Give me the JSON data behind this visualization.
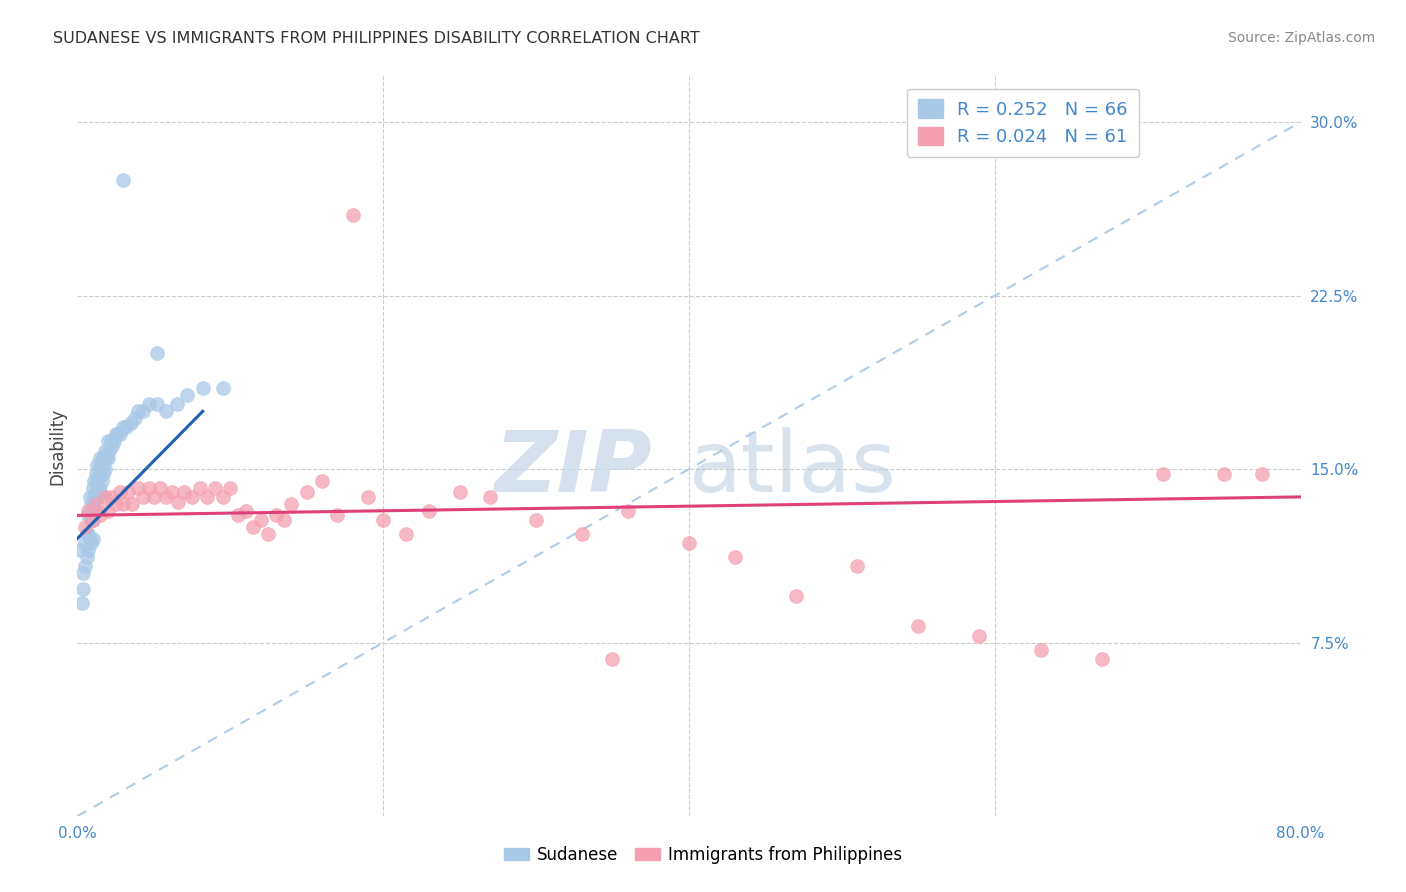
{
  "title": "SUDANESE VS IMMIGRANTS FROM PHILIPPINES DISABILITY CORRELATION CHART",
  "source": "Source: ZipAtlas.com",
  "ylabel": "Disability",
  "xlim": [
    0.0,
    0.8
  ],
  "ylim": [
    0.0,
    0.32
  ],
  "blue_color": "#a8c8e8",
  "pink_color": "#f4a0b0",
  "blue_line_color": "#2060b0",
  "pink_line_color": "#e0407a",
  "dashed_line_color": "#b0cce8",
  "watermark_zip": "ZIP",
  "watermark_atlas": "atlas",
  "legend_label_blue": "Sudanese",
  "legend_label_pink": "Immigrants from Philippines",
  "legend_R_blue": "0.252",
  "legend_N_blue": "66",
  "legend_R_pink": "0.024",
  "legend_N_pink": "61",
  "sudanese_x": [
    0.002,
    0.003,
    0.004,
    0.004,
    0.005,
    0.005,
    0.006,
    0.006,
    0.007,
    0.007,
    0.007,
    0.008,
    0.008,
    0.008,
    0.009,
    0.009,
    0.009,
    0.01,
    0.01,
    0.01,
    0.01,
    0.011,
    0.011,
    0.011,
    0.012,
    0.012,
    0.012,
    0.013,
    0.013,
    0.013,
    0.014,
    0.014,
    0.015,
    0.015,
    0.015,
    0.016,
    0.016,
    0.017,
    0.017,
    0.018,
    0.018,
    0.019,
    0.02,
    0.02,
    0.021,
    0.022,
    0.023,
    0.024,
    0.025,
    0.026,
    0.028,
    0.03,
    0.032,
    0.035,
    0.038,
    0.04,
    0.043,
    0.047,
    0.052,
    0.058,
    0.065,
    0.072,
    0.082,
    0.095,
    0.052,
    0.03
  ],
  "sudanese_y": [
    0.115,
    0.092,
    0.105,
    0.098,
    0.118,
    0.108,
    0.122,
    0.112,
    0.13,
    0.122,
    0.115,
    0.138,
    0.13,
    0.12,
    0.135,
    0.128,
    0.118,
    0.142,
    0.135,
    0.128,
    0.12,
    0.145,
    0.138,
    0.13,
    0.148,
    0.14,
    0.132,
    0.152,
    0.145,
    0.138,
    0.15,
    0.142,
    0.155,
    0.148,
    0.14,
    0.152,
    0.145,
    0.155,
    0.148,
    0.158,
    0.15,
    0.155,
    0.162,
    0.155,
    0.158,
    0.162,
    0.16,
    0.162,
    0.165,
    0.165,
    0.165,
    0.168,
    0.168,
    0.17,
    0.172,
    0.175,
    0.175,
    0.178,
    0.178,
    0.175,
    0.178,
    0.182,
    0.185,
    0.185,
    0.2,
    0.275
  ],
  "philippines_x": [
    0.005,
    0.007,
    0.01,
    0.012,
    0.015,
    0.018,
    0.02,
    0.022,
    0.025,
    0.028,
    0.03,
    0.033,
    0.036,
    0.04,
    0.043,
    0.047,
    0.05,
    0.054,
    0.058,
    0.062,
    0.066,
    0.07,
    0.075,
    0.08,
    0.085,
    0.09,
    0.095,
    0.1,
    0.105,
    0.11,
    0.115,
    0.12,
    0.125,
    0.13,
    0.135,
    0.14,
    0.15,
    0.16,
    0.17,
    0.18,
    0.19,
    0.2,
    0.215,
    0.23,
    0.25,
    0.27,
    0.3,
    0.33,
    0.36,
    0.4,
    0.43,
    0.47,
    0.51,
    0.55,
    0.59,
    0.63,
    0.67,
    0.71,
    0.75,
    0.775,
    0.35
  ],
  "philippines_y": [
    0.125,
    0.132,
    0.128,
    0.135,
    0.13,
    0.138,
    0.132,
    0.138,
    0.135,
    0.14,
    0.135,
    0.14,
    0.135,
    0.142,
    0.138,
    0.142,
    0.138,
    0.142,
    0.138,
    0.14,
    0.136,
    0.14,
    0.138,
    0.142,
    0.138,
    0.142,
    0.138,
    0.142,
    0.13,
    0.132,
    0.125,
    0.128,
    0.122,
    0.13,
    0.128,
    0.135,
    0.14,
    0.145,
    0.13,
    0.26,
    0.138,
    0.128,
    0.122,
    0.132,
    0.14,
    0.138,
    0.128,
    0.122,
    0.132,
    0.118,
    0.112,
    0.095,
    0.108,
    0.082,
    0.078,
    0.072,
    0.068,
    0.148,
    0.148,
    0.148,
    0.068
  ]
}
